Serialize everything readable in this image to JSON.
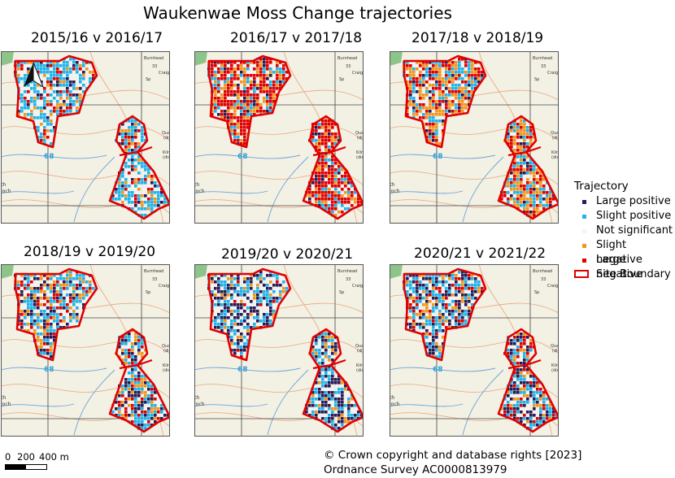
{
  "title": "Waukenwae Moss Change trajectories",
  "panels": [
    {
      "title": "2015/16 v 2016/17",
      "mix": {
        "lp": 0.08,
        "sp": 0.42,
        "sn": 0.1,
        "ln": 0.08
      }
    },
    {
      "title": "2016/17 v 2017/18",
      "mix": {
        "lp": 0.06,
        "sp": 0.14,
        "sn": 0.16,
        "ln": 0.46
      }
    },
    {
      "title": "2017/18 v 2018/19",
      "mix": {
        "lp": 0.08,
        "sp": 0.18,
        "sn": 0.3,
        "ln": 0.22
      }
    },
    {
      "title": "2018/19 v 2019/20",
      "mix": {
        "lp": 0.22,
        "sp": 0.24,
        "sn": 0.16,
        "ln": 0.1
      }
    },
    {
      "title": "2019/20 v 2020/21",
      "mix": {
        "lp": 0.3,
        "sp": 0.26,
        "sn": 0.1,
        "ln": 0.02
      }
    },
    {
      "title": "2020/21 v 2021/22",
      "mix": {
        "lp": 0.26,
        "sp": 0.24,
        "sn": 0.12,
        "ln": 0.12
      }
    }
  ],
  "basemap_labels": {
    "burnhead": "Burnhead",
    "craig": "Craig",
    "quarry": "Quarry",
    "dis": "(dis)",
    "kiln": "Kiln",
    "dis2": "(dis)",
    "grid": "68",
    "sp": "Sp",
    "num": "33",
    "th": "th",
    "loch": "loch"
  },
  "legend": {
    "title": "Trajectory",
    "items": [
      {
        "label": "Large positive",
        "color": "#2a1b55"
      },
      {
        "label": "Slight positive",
        "color": "#1fb4ec"
      },
      {
        "label": "Not significant",
        "color": "#f4f4f0"
      },
      {
        "label": "Slight negative",
        "color": "#f2961c"
      },
      {
        "label": "Large negative",
        "color": "#e00000"
      }
    ],
    "boundary_label": "Site Boundary",
    "boundary_color": "#e00000"
  },
  "scale": {
    "zero": "0",
    "mid": "200",
    "end": "400 m"
  },
  "copyright": {
    "line1": "© Crown copyright and database rights [2023]",
    "line2": "Ordnance Survey AC0000813979"
  },
  "north_arrow_icon": "north-arrow-icon"
}
